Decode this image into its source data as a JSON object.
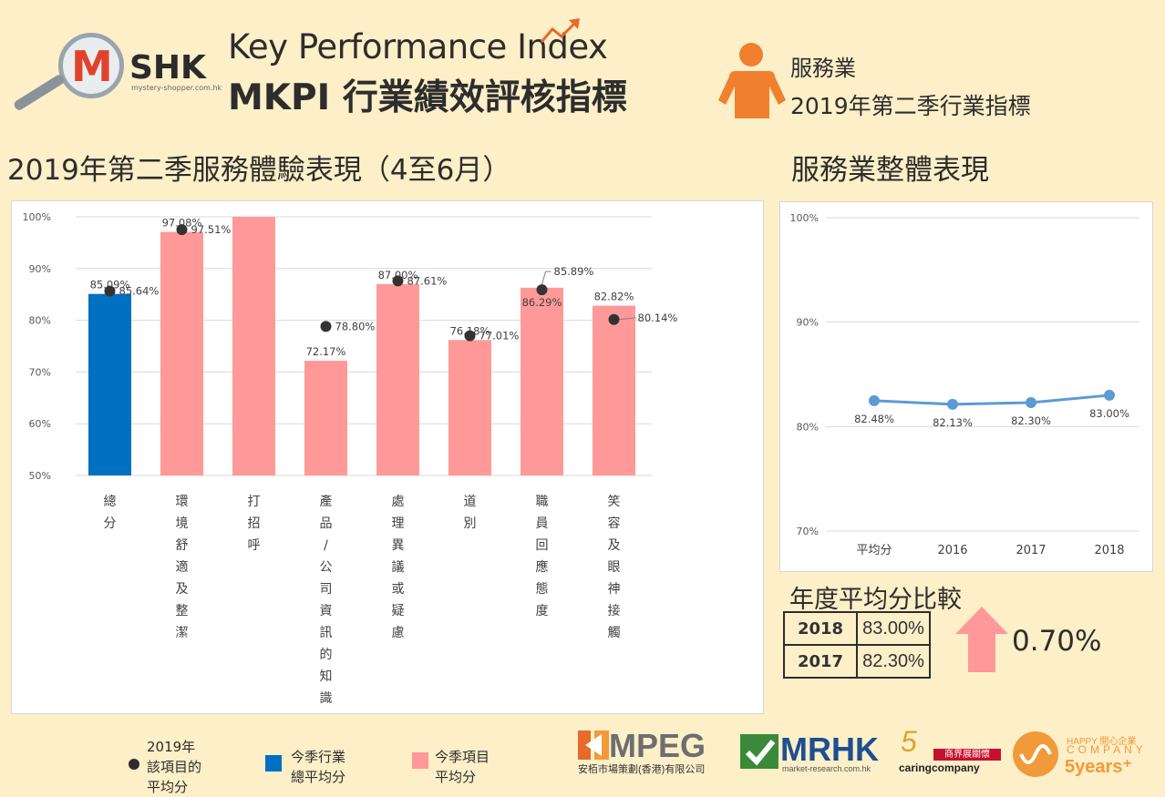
{
  "header": {
    "logo_letter": "M",
    "logo_text": "SHK",
    "logo_url": "mystery-shopper.com.hk",
    "title_en": "Key Performance Index",
    "title_zh": "MKPI 行業績效評核指標",
    "industry": "服務業",
    "industry_sub": "2019年第二季行業指標"
  },
  "main_title": "2019年第二季服務體驗表現（4至6月）",
  "side_title": "服務業整體表現",
  "colors": {
    "total_bar": "#0070c0",
    "item_bar": "#ff9999",
    "dot": "#333333",
    "line": "#5b9bd5",
    "background": "#fdefc8"
  },
  "chart_data": [
    {
      "type": "bar",
      "categories": [
        "總分",
        "環境舒適及整潔",
        "打招呼",
        "產品/公司資訊的知識",
        "處理異議或疑慮",
        "道別",
        "職員回應態度",
        "笑容及眼神接觸"
      ],
      "y_tick_labels": [
        "50%",
        "60%",
        "70%",
        "80%",
        "90%",
        "100%"
      ],
      "ylim": [
        50,
        100
      ],
      "grid": true,
      "series": [
        {
          "name": "今季行業總平均分 / 今季項目平均分",
          "values": [
            85.09,
            97.08,
            100,
            72.17,
            87.0,
            76.18,
            86.29,
            82.82
          ],
          "labels": [
            "85.09%",
            "97.08%",
            "",
            "72.17%",
            "87.00%",
            "76.18%",
            "86.29%",
            "82.82%"
          ]
        },
        {
          "name": "2019年該項目的平均分",
          "type": "scatter",
          "values": [
            85.64,
            97.51,
            null,
            78.8,
            87.61,
            77.01,
            85.89,
            80.14
          ],
          "labels": [
            "85.64%",
            "97.51%",
            "",
            "78.80%",
            "87.61%",
            "77.01%",
            "85.89%",
            "80.14%"
          ]
        }
      ]
    },
    {
      "type": "line",
      "categories": [
        "平均分",
        "2016",
        "2017",
        "2018"
      ],
      "y_tick_labels": [
        "70%",
        "80%",
        "90%",
        "100%"
      ],
      "ylim": [
        70,
        100
      ],
      "grid": true,
      "series": [
        {
          "values": [
            82.48,
            82.13,
            82.3,
            83.0
          ],
          "labels": [
            "82.48%",
            "82.13%",
            "82.30%",
            "83.00%"
          ]
        }
      ]
    }
  ],
  "comparison": {
    "title": "年度平均分比較",
    "rows": [
      {
        "year": "2018",
        "value": "83.00%"
      },
      {
        "year": "2017",
        "value": "82.30%"
      }
    ],
    "difference": "0.70%"
  },
  "legend": {
    "dot_label": "2019年\n該項目的\n平均分",
    "blue_label": "今季行業\n總平均分",
    "pink_label": "今季項目\n平均分"
  },
  "brands": {
    "mpeg": "MPEG",
    "mpeg_sub": "安栢市場策劃(香港)有限公司",
    "mrhk": "MRHK",
    "mrhk_sub": "market-research.com.hk",
    "caring_top": "5",
    "caring_text": "caringcompany",
    "caring_banner": "商界展關懷",
    "happy_top": "HAPPY 開心企業",
    "happy_mid": "COMPANY",
    "happy_years": "5years⁺"
  }
}
